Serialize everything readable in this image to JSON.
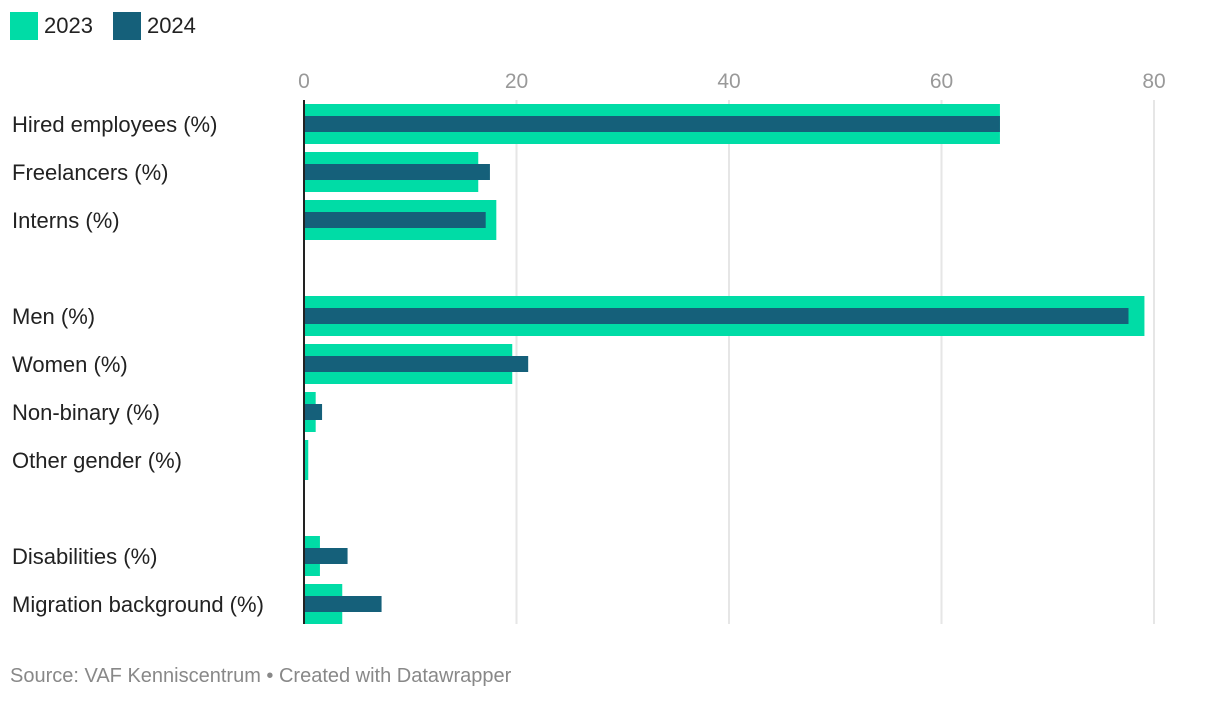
{
  "chart_data": {
    "type": "bar",
    "orientation": "horizontal",
    "categories": [
      "Hired employees (%)",
      "Freelancers (%)",
      "Interns (%)",
      "Men (%)",
      "Women (%)",
      "Non-binary (%)",
      "Other gender (%)",
      "Disabilities (%)",
      "Migration background (%)"
    ],
    "category_groups": [
      [
        0,
        1,
        2
      ],
      [
        3,
        4,
        5,
        6
      ],
      [
        7,
        8
      ]
    ],
    "series": [
      {
        "name": "2023",
        "color": "#00dca6",
        "values": [
          65.5,
          16.4,
          18.1,
          79.1,
          19.6,
          1.1,
          0.4,
          1.5,
          3.6
        ]
      },
      {
        "name": "2024",
        "color": "#15607a",
        "values": [
          65.5,
          17.5,
          17.1,
          77.6,
          21.1,
          1.7,
          0,
          4.1,
          7.3
        ]
      }
    ],
    "xlim": [
      0,
      80
    ],
    "xticks": [
      "0",
      "20",
      "40",
      "60",
      "80"
    ],
    "grid": true,
    "legend_placement": "top-left"
  },
  "footer": {
    "source": "Source: VAF Kenniscentrum • Created with Datawrapper"
  }
}
